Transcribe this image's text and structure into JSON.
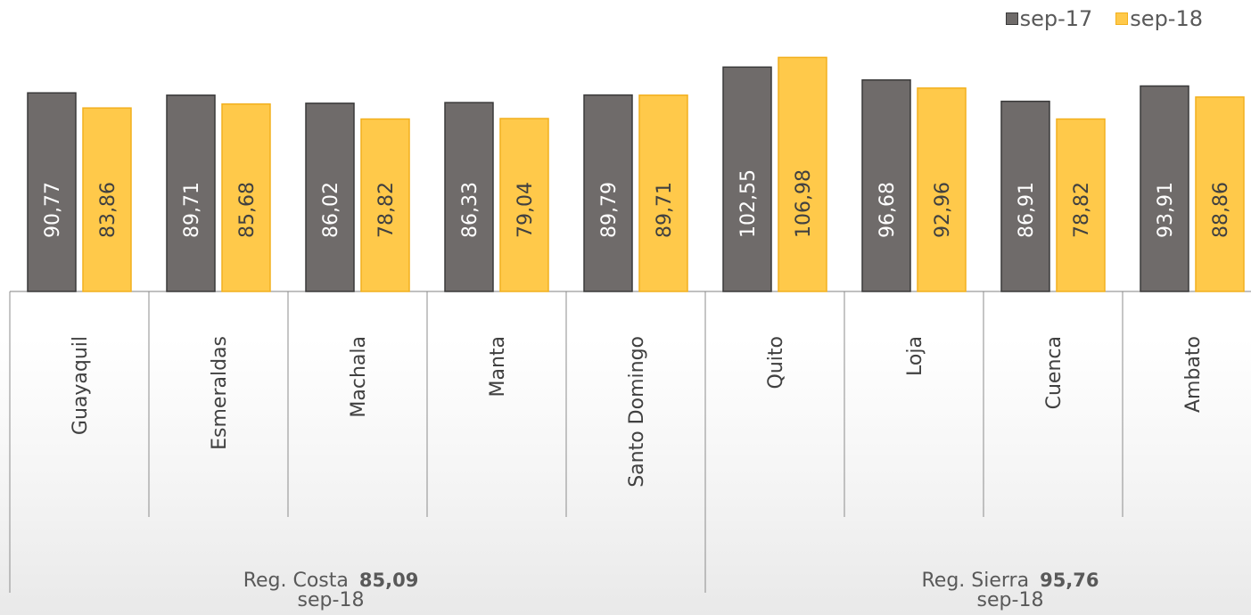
{
  "chart_data": {
    "type": "bar",
    "categories": [
      "Guayaquil",
      "Esmeraldas",
      "Machala",
      "Manta",
      "Santo Domingo",
      "Quito",
      "Loja",
      "Cuenca",
      "Ambato"
    ],
    "series": [
      {
        "name": "sep-17",
        "values": [
          90.77,
          89.71,
          86.02,
          86.33,
          89.79,
          102.55,
          96.68,
          86.91,
          93.91
        ],
        "labels": [
          "90,77",
          "89,71",
          "86,02",
          "86,33",
          "89,79",
          "102,55",
          "96,68",
          "86,91",
          "93,91"
        ],
        "color": "#6f6b6a",
        "stroke": "#3a3a3a"
      },
      {
        "name": "sep-18",
        "values": [
          83.86,
          85.68,
          78.82,
          79.04,
          89.71,
          106.98,
          92.96,
          78.82,
          88.86
        ],
        "labels": [
          "83,86",
          "85,68",
          "78,82",
          "79,04",
          "89,71",
          "106,98",
          "92,96",
          "78,82",
          "88,86"
        ],
        "color": "#ffc94a",
        "stroke": "#f2b01e"
      }
    ],
    "ylim": [
      0,
      110
    ],
    "groups": [
      {
        "name": "Reg. Costa",
        "period": "sep-18",
        "value": "85,09",
        "categories": [
          "Guayaquil",
          "Esmeraldas",
          "Machala",
          "Manta",
          "Santo Domingo"
        ]
      },
      {
        "name": "Reg. Sierra",
        "period": "sep-18",
        "value": "95,76",
        "categories": [
          "Quito",
          "Loja",
          "Cuenca",
          "Ambato"
        ]
      }
    ],
    "legend_position": "top-right",
    "grid": false
  }
}
